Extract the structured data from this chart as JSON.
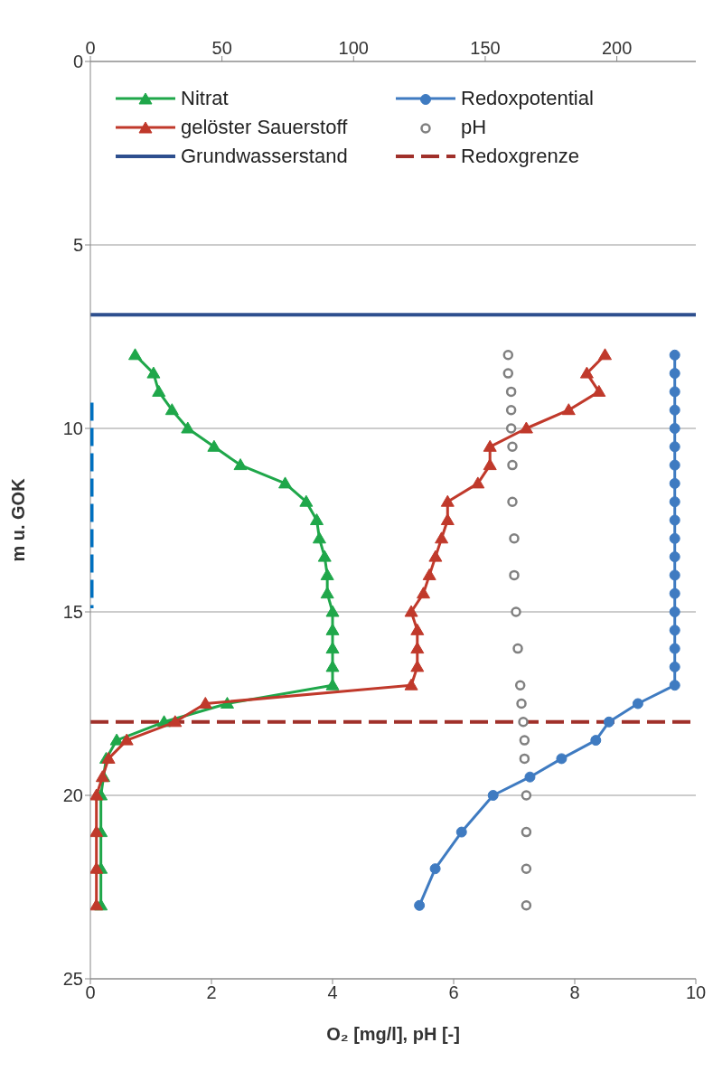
{
  "chart_data": {
    "type": "line",
    "xlabel": "O₂ [mg/l], pH [-]",
    "ylabel": "m u. GOK",
    "xlim": [
      0,
      10
    ],
    "xticks": [
      0,
      2,
      4,
      6,
      8,
      10
    ],
    "x2lim": [
      0,
      230
    ],
    "x2ticks": [
      0,
      50,
      100,
      150,
      200
    ],
    "ylim": [
      25,
      0
    ],
    "yticks": [
      0,
      5,
      10,
      15,
      20,
      25
    ],
    "grid": "y",
    "legend": "top",
    "series": [
      {
        "name": "Nitrat",
        "axis": "x2",
        "marker": "triangle",
        "color": "#1fa74a",
        "x": [
          17,
          24,
          26,
          31,
          37,
          47,
          57,
          74,
          82,
          86,
          87,
          89,
          90,
          90,
          92,
          92,
          92,
          92,
          92,
          52,
          28,
          10,
          6,
          5,
          4,
          4,
          4,
          4
        ],
        "values": [
          8,
          8.5,
          9,
          9.5,
          10,
          10.5,
          11,
          11.5,
          12,
          12.5,
          13,
          13.5,
          14,
          14.5,
          15,
          15.5,
          16,
          16.5,
          17,
          17.5,
          18,
          18.5,
          19,
          19.5,
          20,
          21,
          22,
          23
        ]
      },
      {
        "name": "Redoxpotential",
        "axis": "x2",
        "marker": "circle",
        "color": "#3f7bc1",
        "x": [
          222,
          222,
          222,
          222,
          222,
          222,
          222,
          222,
          222,
          222,
          222,
          222,
          222,
          222,
          222,
          222,
          222,
          222,
          222,
          208,
          197,
          192,
          179,
          167,
          153,
          141,
          131,
          125
        ],
        "values": [
          8,
          8.5,
          9,
          9.5,
          10,
          10.5,
          11,
          11.5,
          12,
          12.5,
          13,
          13.5,
          14,
          14.5,
          15,
          15.5,
          16,
          16.5,
          17,
          17.5,
          18,
          18.5,
          19,
          19.5,
          20,
          21,
          22,
          23
        ]
      },
      {
        "name": "gelöster Sauerstoff",
        "marker": "triangle",
        "color": "#c0392b",
        "x": [
          8.5,
          8.2,
          8.4,
          7.9,
          7.2,
          6.6,
          6.6,
          6.4,
          5.9,
          5.9,
          5.8,
          5.7,
          5.6,
          5.5,
          5.3,
          5.4,
          5.4,
          5.4,
          5.3,
          1.9,
          1.4,
          0.6,
          0.3,
          0.2,
          0.1,
          0.1,
          0.1,
          0.1
        ],
        "values": [
          8,
          8.5,
          9,
          9.5,
          10,
          10.5,
          11,
          11.5,
          12,
          12.5,
          13,
          13.5,
          14,
          14.5,
          15,
          15.5,
          16,
          16.5,
          17,
          17.5,
          18,
          18.5,
          19,
          19.5,
          20,
          21,
          22,
          23
        ]
      },
      {
        "name": "pH",
        "type": "scatter",
        "marker": "circle",
        "color": "#808080",
        "x": [
          6.9,
          6.9,
          6.95,
          6.95,
          6.95,
          6.97,
          6.97,
          6.97,
          7.0,
          7.0,
          7.03,
          7.06,
          7.1,
          7.12,
          7.15,
          7.17,
          7.17,
          7.2,
          7.2,
          7.2,
          7.2
        ],
        "values": [
          8,
          8.5,
          9,
          9.5,
          10,
          10.5,
          11,
          12,
          13,
          14,
          15,
          16,
          17,
          17.5,
          18,
          18.5,
          19,
          20,
          21,
          22,
          23
        ]
      },
      {
        "marker": "none",
        "line_style": "dashed",
        "color": "#0070c0",
        "x": [
          0,
          0
        ],
        "values": [
          9.3,
          14.9
        ]
      }
    ],
    "ref_lines": [
      {
        "axis": "y",
        "value": 6.9,
        "label": "Grundwasserstand",
        "color": "#2e4f8e",
        "line_style": "solid"
      },
      {
        "axis": "y",
        "value": 18,
        "label": "Redoxgrenze",
        "color": "#a0302a",
        "line_style": "dashed"
      }
    ]
  }
}
